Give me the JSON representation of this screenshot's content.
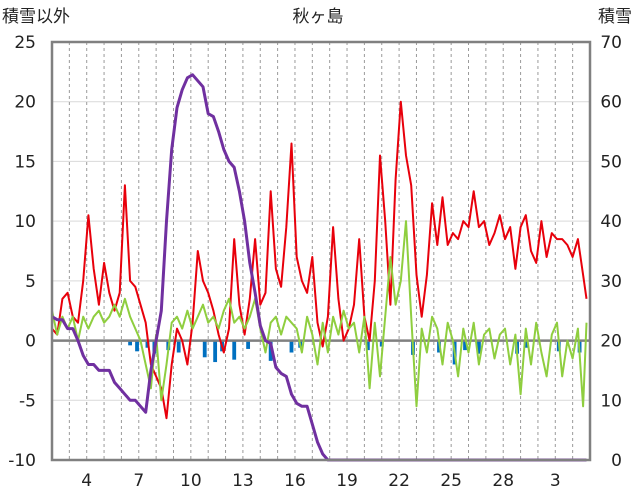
{
  "chart_data": {
    "type": "line",
    "title": "秋ヶ島",
    "ylabel_left": "積雪以外",
    "ylabel_right": "積雪",
    "x_tick_labels": [
      "4",
      "7",
      "10",
      "13",
      "16",
      "19",
      "22",
      "25",
      "28",
      "3"
    ],
    "xlim": [
      2,
      33
    ],
    "ylim_left": [
      -10,
      25
    ],
    "ylim_right": [
      0,
      70
    ],
    "y_ticks_left": [
      -10,
      -5,
      0,
      5,
      10,
      15,
      20,
      25
    ],
    "y_ticks_right": [
      0,
      10,
      20,
      30,
      40,
      50,
      60,
      70
    ],
    "grid": true,
    "colors": {
      "red": "#e8000b",
      "green": "#8fce3f",
      "purple": "#7030a0",
      "blue": "#0070c0",
      "zero_line": "#808080",
      "frame": "#808080"
    },
    "series": [
      {
        "color": "red",
        "axis": "left",
        "points": [
          [
            2.0,
            1.0
          ],
          [
            2.3,
            0.5
          ],
          [
            2.6,
            3.5
          ],
          [
            2.9,
            4.0
          ],
          [
            3.2,
            2.0
          ],
          [
            3.5,
            1.5
          ],
          [
            3.8,
            5.0
          ],
          [
            4.1,
            10.5
          ],
          [
            4.4,
            6.0
          ],
          [
            4.7,
            3.0
          ],
          [
            5.0,
            6.5
          ],
          [
            5.3,
            4.0
          ],
          [
            5.6,
            2.5
          ],
          [
            5.9,
            4.0
          ],
          [
            6.2,
            13.0
          ],
          [
            6.5,
            5.0
          ],
          [
            6.8,
            4.5
          ],
          [
            7.1,
            3.0
          ],
          [
            7.4,
            1.5
          ],
          [
            7.7,
            -2.0
          ],
          [
            8.0,
            -3.0
          ],
          [
            8.3,
            -4.0
          ],
          [
            8.6,
            -6.5
          ],
          [
            8.9,
            -2.0
          ],
          [
            9.2,
            1.0
          ],
          [
            9.5,
            0.0
          ],
          [
            9.8,
            -2.0
          ],
          [
            10.1,
            1.5
          ],
          [
            10.4,
            7.5
          ],
          [
            10.7,
            5.0
          ],
          [
            11.0,
            4.0
          ],
          [
            11.3,
            2.5
          ],
          [
            11.6,
            0.5
          ],
          [
            11.9,
            -1.0
          ],
          [
            12.2,
            1.0
          ],
          [
            12.5,
            8.5
          ],
          [
            12.8,
            3.0
          ],
          [
            13.1,
            0.5
          ],
          [
            13.4,
            3.5
          ],
          [
            13.7,
            8.5
          ],
          [
            14.0,
            3.0
          ],
          [
            14.3,
            4.0
          ],
          [
            14.6,
            12.5
          ],
          [
            14.9,
            6.0
          ],
          [
            15.2,
            4.5
          ],
          [
            15.5,
            9.5
          ],
          [
            15.8,
            16.5
          ],
          [
            16.1,
            7.0
          ],
          [
            16.4,
            5.0
          ],
          [
            16.7,
            4.0
          ],
          [
            17.0,
            7.0
          ],
          [
            17.3,
            1.5
          ],
          [
            17.6,
            -0.5
          ],
          [
            17.9,
            2.0
          ],
          [
            18.2,
            9.5
          ],
          [
            18.5,
            3.5
          ],
          [
            18.8,
            0.0
          ],
          [
            19.1,
            1.0
          ],
          [
            19.4,
            3.0
          ],
          [
            19.7,
            8.5
          ],
          [
            20.0,
            2.0
          ],
          [
            20.3,
            0.0
          ],
          [
            20.6,
            5.0
          ],
          [
            20.9,
            15.5
          ],
          [
            21.2,
            10.0
          ],
          [
            21.5,
            3.0
          ],
          [
            21.8,
            13.5
          ],
          [
            22.1,
            20.0
          ],
          [
            22.4,
            15.5
          ],
          [
            22.7,
            13.0
          ],
          [
            23.0,
            5.5
          ],
          [
            23.3,
            2.0
          ],
          [
            23.6,
            5.5
          ],
          [
            23.9,
            11.5
          ],
          [
            24.2,
            8.0
          ],
          [
            24.5,
            12.0
          ],
          [
            24.8,
            8.0
          ],
          [
            25.1,
            9.0
          ],
          [
            25.4,
            8.5
          ],
          [
            25.7,
            10.0
          ],
          [
            26.0,
            9.5
          ],
          [
            26.3,
            12.5
          ],
          [
            26.6,
            9.5
          ],
          [
            26.9,
            10.0
          ],
          [
            27.2,
            8.0
          ],
          [
            27.5,
            9.0
          ],
          [
            27.8,
            10.5
          ],
          [
            28.1,
            8.5
          ],
          [
            28.4,
            9.5
          ],
          [
            28.7,
            6.0
          ],
          [
            29.0,
            9.5
          ],
          [
            29.3,
            10.5
          ],
          [
            29.6,
            7.5
          ],
          [
            29.9,
            6.5
          ],
          [
            30.2,
            10.0
          ],
          [
            30.5,
            7.0
          ],
          [
            30.8,
            9.0
          ],
          [
            31.1,
            8.5
          ],
          [
            31.4,
            8.5
          ],
          [
            31.7,
            8.0
          ],
          [
            32.0,
            7.0
          ],
          [
            32.3,
            8.5
          ],
          [
            32.6,
            5.5
          ],
          [
            32.8,
            3.5
          ]
        ]
      },
      {
        "color": "green",
        "axis": "left",
        "points": [
          [
            2.0,
            2.5
          ],
          [
            2.3,
            0.5
          ],
          [
            2.6,
            2.0
          ],
          [
            2.9,
            1.0
          ],
          [
            3.2,
            2.0
          ],
          [
            3.5,
            0.0
          ],
          [
            3.8,
            2.0
          ],
          [
            4.1,
            1.0
          ],
          [
            4.4,
            2.0
          ],
          [
            4.7,
            2.5
          ],
          [
            5.0,
            1.5
          ],
          [
            5.3,
            2.0
          ],
          [
            5.6,
            3.0
          ],
          [
            5.9,
            2.0
          ],
          [
            6.2,
            3.5
          ],
          [
            6.5,
            2.0
          ],
          [
            6.8,
            1.0
          ],
          [
            7.1,
            0.0
          ],
          [
            7.4,
            -2.0
          ],
          [
            7.7,
            -4.0
          ],
          [
            8.0,
            0.5
          ],
          [
            8.3,
            -5.0
          ],
          [
            8.6,
            -2.0
          ],
          [
            8.9,
            1.5
          ],
          [
            9.2,
            2.0
          ],
          [
            9.5,
            1.0
          ],
          [
            9.8,
            2.5
          ],
          [
            10.1,
            1.0
          ],
          [
            10.4,
            2.0
          ],
          [
            10.7,
            3.0
          ],
          [
            11.0,
            1.5
          ],
          [
            11.3,
            2.0
          ],
          [
            11.6,
            1.0
          ],
          [
            11.9,
            2.5
          ],
          [
            12.2,
            3.5
          ],
          [
            12.5,
            1.5
          ],
          [
            12.8,
            2.0
          ],
          [
            13.1,
            1.0
          ],
          [
            13.4,
            2.0
          ],
          [
            13.7,
            3.5
          ],
          [
            14.0,
            1.0
          ],
          [
            14.3,
            -1.0
          ],
          [
            14.6,
            1.5
          ],
          [
            14.9,
            2.0
          ],
          [
            15.2,
            0.5
          ],
          [
            15.5,
            2.0
          ],
          [
            15.8,
            1.5
          ],
          [
            16.1,
            1.0
          ],
          [
            16.4,
            -1.0
          ],
          [
            16.7,
            2.0
          ],
          [
            17.0,
            0.5
          ],
          [
            17.3,
            -2.0
          ],
          [
            17.6,
            1.5
          ],
          [
            17.9,
            -1.0
          ],
          [
            18.2,
            2.0
          ],
          [
            18.5,
            0.5
          ],
          [
            18.8,
            2.5
          ],
          [
            19.1,
            1.0
          ],
          [
            19.4,
            1.5
          ],
          [
            19.7,
            -1.0
          ],
          [
            20.0,
            2.0
          ],
          [
            20.3,
            -4.0
          ],
          [
            20.6,
            1.5
          ],
          [
            20.9,
            -3.0
          ],
          [
            21.2,
            2.0
          ],
          [
            21.5,
            7.0
          ],
          [
            21.8,
            3.0
          ],
          [
            22.1,
            5.0
          ],
          [
            22.4,
            10.0
          ],
          [
            22.7,
            2.0
          ],
          [
            23.0,
            -5.5
          ],
          [
            23.3,
            1.0
          ],
          [
            23.6,
            -1.0
          ],
          [
            23.9,
            2.0
          ],
          [
            24.2,
            1.0
          ],
          [
            24.5,
            -2.0
          ],
          [
            24.8,
            1.5
          ],
          [
            25.1,
            0.0
          ],
          [
            25.4,
            -3.0
          ],
          [
            25.7,
            1.0
          ],
          [
            26.0,
            -1.0
          ],
          [
            26.3,
            1.5
          ],
          [
            26.6,
            -2.0
          ],
          [
            26.9,
            0.5
          ],
          [
            27.2,
            1.0
          ],
          [
            27.5,
            -1.5
          ],
          [
            27.8,
            0.5
          ],
          [
            28.1,
            1.0
          ],
          [
            28.4,
            -2.0
          ],
          [
            28.7,
            0.5
          ],
          [
            29.0,
            -4.5
          ],
          [
            29.3,
            1.0
          ],
          [
            29.6,
            -2.0
          ],
          [
            29.9,
            1.5
          ],
          [
            30.2,
            -1.0
          ],
          [
            30.5,
            -3.0
          ],
          [
            30.8,
            0.5
          ],
          [
            31.1,
            1.5
          ],
          [
            31.4,
            -3.0
          ],
          [
            31.7,
            0.0
          ],
          [
            32.0,
            -1.5
          ],
          [
            32.3,
            1.0
          ],
          [
            32.6,
            -5.5
          ],
          [
            32.8,
            1.5
          ]
        ]
      },
      {
        "color": "purple",
        "axis": "right",
        "points": [
          [
            2.0,
            24.0
          ],
          [
            2.3,
            23.5
          ],
          [
            2.6,
            23.5
          ],
          [
            2.9,
            22.0
          ],
          [
            3.2,
            22.0
          ],
          [
            3.5,
            20.0
          ],
          [
            3.8,
            17.5
          ],
          [
            4.1,
            16.0
          ],
          [
            4.4,
            16.0
          ],
          [
            4.7,
            15.0
          ],
          [
            5.0,
            15.0
          ],
          [
            5.3,
            15.0
          ],
          [
            5.6,
            13.0
          ],
          [
            5.9,
            12.0
          ],
          [
            6.2,
            11.0
          ],
          [
            6.5,
            10.0
          ],
          [
            6.8,
            10.0
          ],
          [
            7.1,
            9.0
          ],
          [
            7.4,
            8.0
          ],
          [
            7.7,
            15.0
          ],
          [
            8.0,
            20.0
          ],
          [
            8.3,
            25.0
          ],
          [
            8.6,
            40.0
          ],
          [
            8.9,
            52.0
          ],
          [
            9.2,
            59.0
          ],
          [
            9.5,
            62.0
          ],
          [
            9.8,
            64.0
          ],
          [
            10.1,
            64.5
          ],
          [
            10.4,
            63.5
          ],
          [
            10.7,
            62.5
          ],
          [
            11.0,
            58.0
          ],
          [
            11.3,
            57.5
          ],
          [
            11.6,
            55.0
          ],
          [
            11.9,
            52.0
          ],
          [
            12.2,
            50.0
          ],
          [
            12.5,
            49.0
          ],
          [
            12.8,
            45.0
          ],
          [
            13.1,
            40.0
          ],
          [
            13.4,
            33.0
          ],
          [
            13.7,
            28.0
          ],
          [
            14.0,
            22.5
          ],
          [
            14.3,
            20.0
          ],
          [
            14.6,
            19.5
          ],
          [
            14.9,
            15.5
          ],
          [
            15.2,
            14.5
          ],
          [
            15.5,
            14.0
          ],
          [
            15.8,
            11.0
          ],
          [
            16.1,
            9.5
          ],
          [
            16.4,
            9.0
          ],
          [
            16.7,
            9.0
          ],
          [
            17.0,
            6.0
          ],
          [
            17.3,
            3.0
          ],
          [
            17.6,
            1.0
          ],
          [
            17.9,
            0.0
          ],
          [
            19.0,
            0.0
          ],
          [
            22.0,
            0.0
          ],
          [
            25.0,
            0.0
          ],
          [
            28.0,
            0.0
          ],
          [
            31.0,
            0.0
          ],
          [
            32.8,
            0.0
          ]
        ]
      }
    ],
    "bars": {
      "color": "blue",
      "axis": "left",
      "points": [
        [
          6.5,
          -0.4
        ],
        [
          6.9,
          -0.9
        ],
        [
          7.5,
          -0.6
        ],
        [
          7.9,
          -1.1
        ],
        [
          8.7,
          -0.8
        ],
        [
          9.3,
          -1.0
        ],
        [
          10.8,
          -1.4
        ],
        [
          11.4,
          -1.8
        ],
        [
          11.8,
          -0.9
        ],
        [
          12.5,
          -1.6
        ],
        [
          13.3,
          -0.7
        ],
        [
          14.6,
          -1.7
        ],
        [
          15.8,
          -1.0
        ],
        [
          16.3,
          -0.6
        ],
        [
          20.2,
          -0.8
        ],
        [
          21.0,
          -0.5
        ],
        [
          22.8,
          -1.2
        ],
        [
          24.3,
          -1.0
        ],
        [
          25.2,
          -2.0
        ],
        [
          25.8,
          -0.8
        ],
        [
          26.6,
          -1.1
        ],
        [
          28.8,
          -1.1
        ],
        [
          29.3,
          -0.6
        ],
        [
          31.2,
          -0.9
        ],
        [
          32.4,
          -1.0
        ]
      ]
    }
  }
}
